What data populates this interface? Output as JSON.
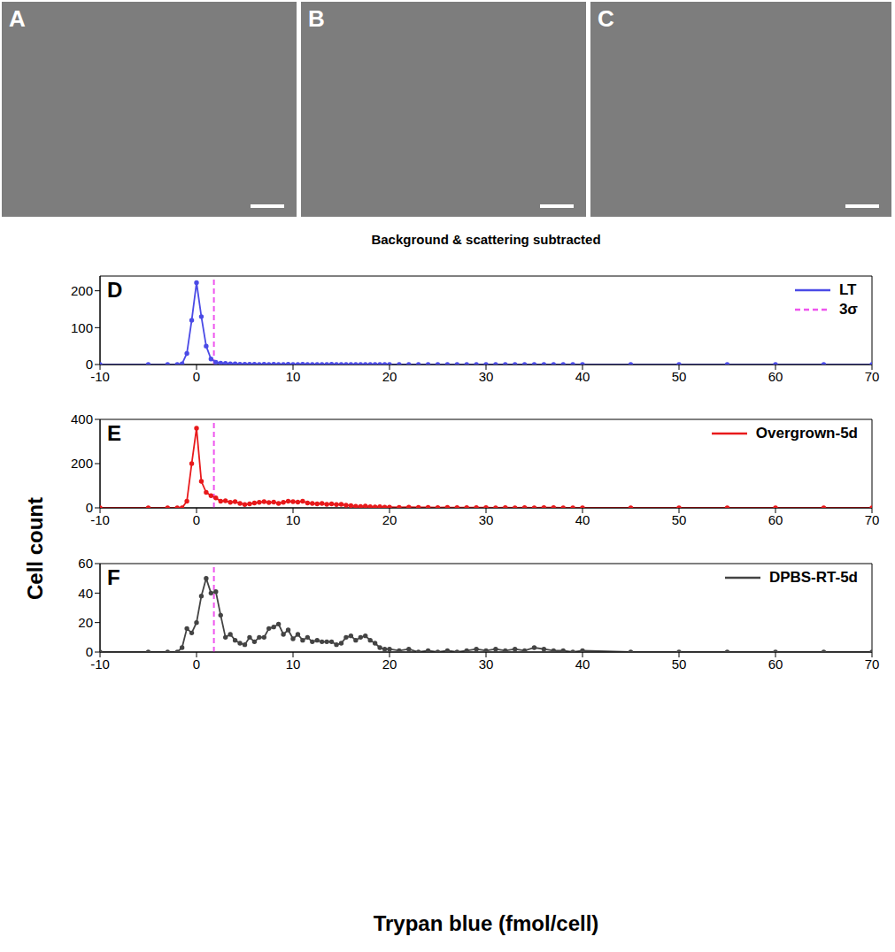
{
  "image_panels": [
    {
      "label": "A"
    },
    {
      "label": "B"
    },
    {
      "label": "C"
    }
  ],
  "ylabel": "Cell count",
  "xlabel": "Trypan blue (fmol/cell)",
  "chart_data": [
    {
      "type": "line",
      "label": "D",
      "title": "Background & scattering subtracted",
      "legend": "upper right",
      "x": [
        -10,
        -5,
        -3,
        -2,
        -1.5,
        -1,
        -0.5,
        0,
        0.5,
        1,
        1.5,
        2,
        2.5,
        3,
        3.5,
        4,
        4.5,
        5,
        5.5,
        6,
        6.5,
        7,
        7.5,
        8,
        8.5,
        9,
        9.5,
        10,
        10.5,
        11,
        11.5,
        12,
        12.5,
        13,
        13.5,
        14,
        14.5,
        15,
        15.5,
        16,
        16.5,
        17,
        17.5,
        18,
        18.5,
        19,
        19.5,
        20,
        21,
        22,
        23,
        24,
        25,
        26,
        27,
        28,
        29,
        30,
        31,
        32,
        33,
        34,
        35,
        36,
        37,
        38,
        39,
        40,
        45,
        50,
        55,
        60,
        65,
        70
      ],
      "xlim": [
        -10,
        70
      ],
      "xticks": [
        -10,
        0,
        10,
        20,
        30,
        40,
        50,
        60,
        70
      ],
      "ylim": [
        0,
        240
      ],
      "yticks": [
        0,
        100,
        200
      ],
      "series": [
        {
          "name": "LT",
          "color": "#4b4be6",
          "marker": "circle",
          "values": [
            0,
            0,
            0,
            0,
            2,
            30,
            120,
            222,
            130,
            50,
            15,
            6,
            4,
            3,
            2,
            2,
            1,
            1,
            1,
            1,
            0,
            1,
            0,
            1,
            0,
            0,
            1,
            0,
            0,
            1,
            0,
            0,
            0,
            0,
            0,
            1,
            0,
            0,
            0,
            0,
            0,
            0,
            0,
            0,
            0,
            0,
            0,
            0,
            0,
            0,
            0,
            0,
            0,
            0,
            0,
            0,
            0,
            0,
            0,
            0,
            0,
            0,
            0,
            0,
            0,
            0,
            0,
            0,
            0,
            0,
            0,
            0,
            0,
            0
          ]
        },
        {
          "name": "3σ",
          "type": "vline",
          "x": 1.8,
          "color": "#ee55ee",
          "line_style": "dashed"
        }
      ]
    },
    {
      "type": "line",
      "label": "E",
      "legend": "upper right",
      "x": [
        -10,
        -5,
        -3,
        -2,
        -1.5,
        -1,
        -0.5,
        0,
        0.5,
        1,
        1.5,
        2,
        2.5,
        3,
        3.5,
        4,
        4.5,
        5,
        5.5,
        6,
        6.5,
        7,
        7.5,
        8,
        8.5,
        9,
        9.5,
        10,
        10.5,
        11,
        11.5,
        12,
        12.5,
        13,
        13.5,
        14,
        14.5,
        15,
        15.5,
        16,
        16.5,
        17,
        17.5,
        18,
        18.5,
        19,
        19.5,
        20,
        21,
        22,
        23,
        24,
        25,
        26,
        27,
        28,
        29,
        30,
        31,
        32,
        33,
        34,
        35,
        36,
        37,
        38,
        39,
        40,
        45,
        50,
        55,
        60,
        65,
        70
      ],
      "xlim": [
        -10,
        70
      ],
      "xticks": [
        -10,
        0,
        10,
        20,
        30,
        40,
        50,
        60,
        70
      ],
      "ylim": [
        0,
        400
      ],
      "yticks": [
        0,
        200,
        400
      ],
      "series": [
        {
          "name": "Overgrown-5d",
          "color": "#e8191b",
          "marker": "circle",
          "values": [
            0,
            0,
            0,
            0,
            0,
            30,
            200,
            360,
            120,
            70,
            55,
            45,
            30,
            32,
            25,
            28,
            20,
            15,
            18,
            22,
            25,
            28,
            24,
            26,
            20,
            25,
            30,
            28,
            26,
            30,
            22,
            20,
            18,
            20,
            16,
            18,
            15,
            16,
            12,
            10,
            7,
            6,
            8,
            5,
            4,
            5,
            3,
            3,
            2,
            3,
            2,
            2,
            1,
            2,
            1,
            1,
            1,
            1,
            0,
            1,
            0,
            1,
            0,
            1,
            1,
            0,
            0,
            0,
            0,
            0,
            0,
            0,
            0,
            0
          ]
        },
        {
          "type": "vline",
          "x": 1.8,
          "color": "#ee55ee",
          "line_style": "dashed"
        }
      ]
    },
    {
      "type": "line",
      "label": "F",
      "legend": "upper right",
      "x": [
        -10,
        -5,
        -3,
        -2,
        -1.5,
        -1,
        -0.5,
        0,
        0.5,
        1,
        1.5,
        2,
        2.5,
        3,
        3.5,
        4,
        4.5,
        5,
        5.5,
        6,
        6.5,
        7,
        7.5,
        8,
        8.5,
        9,
        9.5,
        10,
        10.5,
        11,
        11.5,
        12,
        12.5,
        13,
        13.5,
        14,
        14.5,
        15,
        15.5,
        16,
        16.5,
        17,
        17.5,
        18,
        18.5,
        19,
        19.5,
        20,
        21,
        22,
        23,
        24,
        25,
        26,
        27,
        28,
        29,
        30,
        31,
        32,
        33,
        34,
        35,
        36,
        37,
        38,
        39,
        40,
        45,
        50,
        55,
        60,
        65,
        70
      ],
      "xlim": [
        -10,
        70
      ],
      "xticks": [
        -10,
        0,
        10,
        20,
        30,
        40,
        50,
        60,
        70
      ],
      "ylim": [
        0,
        60
      ],
      "yticks": [
        0,
        20,
        40,
        60
      ],
      "series": [
        {
          "name": "DPBS-RT-5d",
          "color": "#444444",
          "marker": "circle",
          "values": [
            0,
            0,
            0,
            0,
            3,
            16,
            13,
            20,
            38,
            50,
            40,
            41,
            25,
            10,
            12,
            8,
            6,
            5,
            10,
            7,
            10,
            10,
            16,
            17,
            19,
            12,
            15,
            9,
            12,
            8,
            10,
            7,
            8,
            7,
            7,
            7,
            5,
            6,
            10,
            11,
            8,
            10,
            11,
            8,
            6,
            3,
            2,
            2,
            1,
            2,
            0,
            1,
            0,
            1,
            0,
            1,
            2,
            1,
            2,
            1,
            2,
            1,
            3,
            2,
            1,
            1,
            0,
            1,
            0,
            0,
            0,
            0,
            0,
            0
          ]
        },
        {
          "type": "vline",
          "x": 1.8,
          "color": "#ee55ee",
          "line_style": "dashed"
        }
      ]
    }
  ]
}
